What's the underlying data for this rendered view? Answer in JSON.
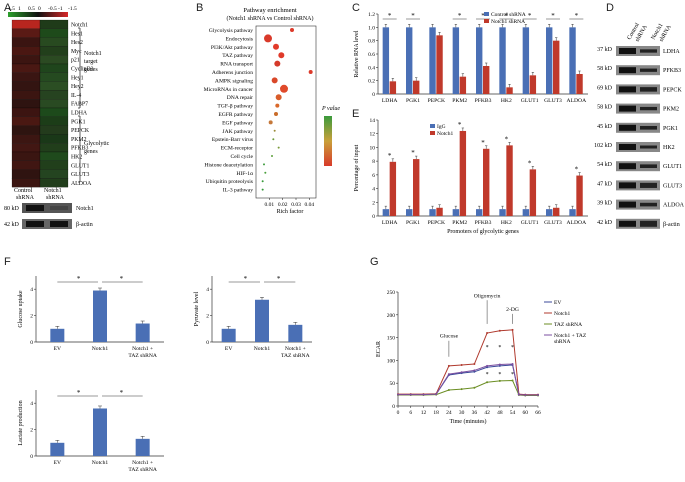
{
  "panel_labels": {
    "a": "A",
    "b": "B",
    "c": "C",
    "d": "D",
    "e": "E",
    "f": "F",
    "g": "G"
  },
  "heatmap": {
    "scale_labels": [
      "1.5",
      "1",
      "0.5",
      "0",
      "-0.5",
      "-1",
      "-1.5"
    ],
    "rows": [
      "Notch1",
      "Hes1",
      "Hes2",
      "Myc",
      "p21",
      "CyclinD3",
      "Hey1",
      "Hey2",
      "IL-4",
      "FABP7",
      "LDHA",
      "PGK1",
      "PEPCK",
      "PKM2",
      "PFKB3",
      "HK2",
      "GLUT1",
      "GLUT3",
      "ALDOA"
    ],
    "group1_label": [
      "Notch1",
      "target",
      "genes"
    ],
    "group2_label": [
      "Glycolytic",
      "genes"
    ],
    "col_labels": [
      [
        "Control",
        "shRNA"
      ],
      [
        "Notch1",
        "shRNA"
      ]
    ],
    "colors": [
      "#c8102e",
      "#1a3d14"
    ],
    "blot_rows": [
      {
        "kd": "80 kD",
        "name": "Notch1"
      },
      {
        "kd": "42 kD",
        "name": "β-actin"
      }
    ]
  },
  "chart_data": [
    {
      "id": "B",
      "type": "scatter",
      "title": "Pathway enrichment",
      "subtitle": "(Notch1 shRNA vs Control shRNA)",
      "xlabel": "Rich factor",
      "xlim": [
        0,
        0.045
      ],
      "xticks": [
        "0.01",
        "0.02",
        "0.03",
        "0.04"
      ],
      "legend_title": "P value",
      "categories": [
        "Glycolysis pathway",
        "Endocytosis",
        "PI3K/Akt pathway",
        "TAZ pathway",
        "RNA transport",
        "Adherens junction",
        "AMPK signaling",
        "MicroRNAs in cancer",
        "DNA repair",
        "TGF-β pathway",
        "EGFR pathway",
        "EGF pathway",
        "JAK pathway",
        "Epstein-Barr virus",
        "ECM-receptor",
        "Cell cycle",
        "Histone deacetylation",
        "HIF-1α",
        "Ubiquitin proteolysis",
        "IL-3 pathway"
      ],
      "x": [
        0.027,
        0.009,
        0.015,
        0.019,
        0.016,
        0.041,
        0.014,
        0.021,
        0.017,
        0.016,
        0.015,
        0.011,
        0.014,
        0.013,
        0.017,
        0.012,
        0.006,
        0.007,
        0.005,
        0.005
      ],
      "sizes": [
        2,
        4,
        3,
        3,
        3,
        2,
        3,
        4,
        3,
        2,
        2,
        2,
        1,
        1,
        1,
        1,
        1,
        1,
        1,
        1
      ],
      "colors": [
        "#dd3a2a",
        "#d93a2a",
        "#e23b2a",
        "#e03a2a",
        "#d53a2a",
        "#dc3a2a",
        "#d9482a",
        "#e04a2b",
        "#d95c2a",
        "#d9692b",
        "#c96c2a",
        "#c5783a",
        "#9a8a38",
        "#6b9a3c",
        "#7a9a3a",
        "#5da03c",
        "#3d9b3c",
        "#4aa03c",
        "#399a3a",
        "#35993a"
      ]
    },
    {
      "id": "C",
      "type": "bar",
      "ylabel": "Relative RNA level",
      "ylim": [
        0,
        1.2
      ],
      "yticks": [
        "0",
        "0.2",
        "0.4",
        "0.6",
        "0.8",
        "1.0",
        "1.2"
      ],
      "categories": [
        "LDHA",
        "PGK1",
        "PEPCK",
        "PKM2",
        "PFKB3",
        "HK2",
        "GLUT1",
        "GLUT3",
        "ALDOA"
      ],
      "series": [
        {
          "name": "Control shRNA",
          "values": [
            1,
            1,
            1,
            1,
            1,
            1,
            1,
            1,
            1
          ]
        },
        {
          "name": "Notch1 shRNA",
          "values": [
            0.19,
            0.2,
            0.88,
            0.26,
            0.42,
            0.1,
            0.28,
            0.8,
            0.3
          ]
        }
      ],
      "significant": [
        true,
        true,
        false,
        true,
        true,
        true,
        true,
        true,
        true
      ],
      "colors": [
        "#4a6fb5",
        "#c0392b"
      ]
    },
    {
      "id": "E",
      "type": "bar",
      "ylabel": "Percentage of input",
      "xlabel": "Promoters of glycolytic genes",
      "ylim": [
        0,
        14
      ],
      "yticks": [
        "0",
        "2",
        "4",
        "6",
        "8",
        "10",
        "12",
        "14"
      ],
      "categories": [
        "LDHA",
        "PGK1",
        "PEPCK",
        "PKM2",
        "PFKB3",
        "HK2",
        "GLUT1",
        "GLUT3",
        "ALDOA"
      ],
      "series": [
        {
          "name": "IgG",
          "values": [
            1,
            1,
            1,
            1,
            1,
            1,
            1,
            1,
            1
          ]
        },
        {
          "name": "Notch1",
          "values": [
            7.9,
            8.3,
            1.2,
            12.4,
            9.8,
            10.3,
            6.8,
            1.2,
            5.9
          ]
        }
      ],
      "significant": [
        true,
        true,
        false,
        true,
        true,
        true,
        true,
        false,
        true
      ],
      "colors": [
        "#4a6fb5",
        "#c0392b"
      ]
    },
    {
      "id": "F1",
      "type": "bar",
      "ylabel": "Glucose uptake",
      "ylim": [
        0,
        5
      ],
      "yticks": [
        "0",
        "2",
        "4"
      ],
      "categories": [
        "EV",
        "Notch1",
        "Notch1 + TAZ shRNA"
      ],
      "values": [
        1,
        3.9,
        1.4
      ],
      "color": "#4a6fb5"
    },
    {
      "id": "F2",
      "type": "bar",
      "ylabel": "Pyruvate level",
      "ylim": [
        0,
        5
      ],
      "yticks": [
        "0",
        "2",
        "4"
      ],
      "categories": [
        "EV",
        "Notch1",
        "Notch1 + TAZ shRNA"
      ],
      "values": [
        1,
        3.2,
        1.3
      ],
      "color": "#4a6fb5"
    },
    {
      "id": "F3",
      "type": "bar",
      "ylabel": "Lactate production",
      "ylim": [
        0,
        5
      ],
      "yticks": [
        "0",
        "2",
        "4"
      ],
      "categories": [
        "EV",
        "Notch1",
        "Notch1 + TAZ shRNA"
      ],
      "values": [
        1,
        3.6,
        1.3
      ],
      "color": "#4a6fb5"
    },
    {
      "id": "G",
      "type": "line",
      "ylabel": "ECAR",
      "xlabel": "Time (minutes)",
      "ylim": [
        0,
        250
      ],
      "xlim": [
        0,
        66
      ],
      "yticks": [
        "0",
        "50",
        "100",
        "150",
        "200",
        "250"
      ],
      "xticks": [
        "0",
        "6",
        "12",
        "18",
        "24",
        "30",
        "36",
        "42",
        "48",
        "54",
        "60",
        "66"
      ],
      "x": [
        0,
        6,
        12,
        18,
        24,
        30,
        36,
        42,
        48,
        54,
        57,
        60,
        66
      ],
      "series": [
        {
          "name": "EV",
          "values": [
            25,
            25,
            25,
            26,
            68,
            72,
            75,
            85,
            88,
            90,
            25,
            24,
            24
          ],
          "color": "#3b4a9a"
        },
        {
          "name": "Notch1",
          "values": [
            26,
            26,
            26,
            27,
            88,
            90,
            92,
            160,
            165,
            167,
            26,
            25,
            25
          ],
          "color": "#b03a2e"
        },
        {
          "name": "TAZ shRNA",
          "values": [
            24,
            24,
            24,
            25,
            35,
            37,
            40,
            52,
            55,
            56,
            24,
            23,
            23
          ],
          "color": "#6b8e23"
        },
        {
          "name": "Notch1 + TAZ shRNA",
          "values": [
            25,
            25,
            25,
            26,
            70,
            74,
            78,
            88,
            91,
            92,
            25,
            24,
            24
          ],
          "color": "#7b4fa0"
        }
      ],
      "annotations": [
        "Glucose",
        "Oligomycin",
        "2-DG"
      ]
    }
  ],
  "blot_d": {
    "col_labels": [
      [
        "Control",
        "shRNA"
      ],
      [
        "Notch1",
        "shRNA"
      ]
    ],
    "rows": [
      {
        "kd": "37 kD",
        "name": "LDHA"
      },
      {
        "kd": "58 kD",
        "name": "PFKB3"
      },
      {
        "kd": "69 kD",
        "name": "PEPCK"
      },
      {
        "kd": "58 kD",
        "name": "PKM2"
      },
      {
        "kd": "45 kD",
        "name": "PGK1"
      },
      {
        "kd": "102 kD",
        "name": "HK2"
      },
      {
        "kd": "54 kD",
        "name": "GLUT1"
      },
      {
        "kd": "47 kD",
        "name": "GLUT3"
      },
      {
        "kd": "39 kD",
        "name": "ALDOA"
      },
      {
        "kd": "42 kD",
        "name": "β-actin"
      }
    ]
  }
}
